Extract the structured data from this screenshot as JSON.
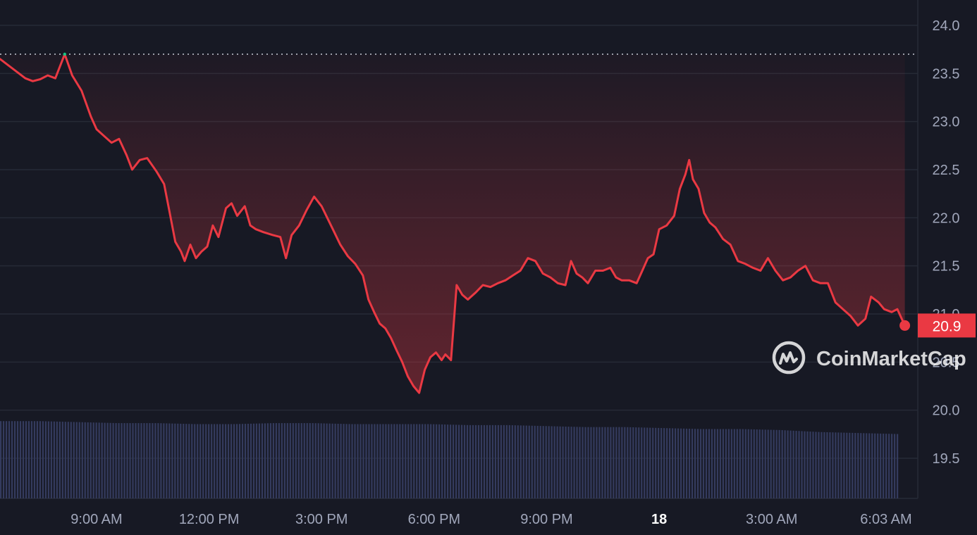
{
  "brand": {
    "watermark": "CoinMarketCap"
  },
  "colors": {
    "background": "#171924",
    "grid": "#262a36",
    "line": "#ea3943",
    "open_marker": "#16c784",
    "reference": "#c8ccd6",
    "volume": "#343b5e",
    "axis_text": "#a1a7bb"
  },
  "chart_data": {
    "type": "line",
    "ylim": [
      19.05,
      24.3
    ],
    "y_ticks": [
      "24.0",
      "23.5",
      "23.0",
      "22.5",
      "22.0",
      "21.5",
      "21.0",
      "20.5",
      "20.0",
      "19.5"
    ],
    "x_ticks": [
      {
        "label": "9:00 AM",
        "t": 2,
        "bold": false
      },
      {
        "label": "12:00 PM",
        "t": 5,
        "bold": false
      },
      {
        "label": "3:00 PM",
        "t": 8,
        "bold": false
      },
      {
        "label": "6:00 PM",
        "t": 11,
        "bold": false
      },
      {
        "label": "9:00 PM",
        "t": 14,
        "bold": false
      },
      {
        "label": "18",
        "t": 17,
        "bold": true
      },
      {
        "label": "3:00 AM",
        "t": 20,
        "bold": false
      },
      {
        "label": "6:03 AM",
        "t": 23.05,
        "bold": false
      }
    ],
    "reference_line": 23.7,
    "last_price": "20.9",
    "series": [
      {
        "points": [
          [
            0,
            23.65
          ],
          [
            0.1,
            23.45
          ],
          [
            0.3,
            23.42
          ],
          [
            0.5,
            23.44
          ],
          [
            0.7,
            23.48
          ],
          [
            0.9,
            23.45
          ],
          [
            1.15,
            23.7
          ],
          [
            1.35,
            23.48
          ],
          [
            1.6,
            23.32
          ],
          [
            1.85,
            23.05
          ],
          [
            2.0,
            22.92
          ],
          [
            2.2,
            22.85
          ],
          [
            2.4,
            22.78
          ],
          [
            2.6,
            22.82
          ],
          [
            2.8,
            22.65
          ],
          [
            2.95,
            22.5
          ],
          [
            3.15,
            22.6
          ],
          [
            3.35,
            22.62
          ],
          [
            3.6,
            22.48
          ],
          [
            3.8,
            22.35
          ],
          [
            3.95,
            22.05
          ],
          [
            4.1,
            21.75
          ],
          [
            4.25,
            21.65
          ],
          [
            4.35,
            21.55
          ],
          [
            4.5,
            21.72
          ],
          [
            4.65,
            21.58
          ],
          [
            4.8,
            21.65
          ],
          [
            4.95,
            21.7
          ],
          [
            5.1,
            21.92
          ],
          [
            5.25,
            21.8
          ],
          [
            5.45,
            22.1
          ],
          [
            5.6,
            22.15
          ],
          [
            5.75,
            22.02
          ],
          [
            5.95,
            22.12
          ],
          [
            6.1,
            21.92
          ],
          [
            6.25,
            21.88
          ],
          [
            6.45,
            21.85
          ],
          [
            6.7,
            21.82
          ],
          [
            6.9,
            21.8
          ],
          [
            7.05,
            21.58
          ],
          [
            7.2,
            21.82
          ],
          [
            7.4,
            21.92
          ],
          [
            7.6,
            22.08
          ],
          [
            7.8,
            22.22
          ],
          [
            8.0,
            22.12
          ],
          [
            8.15,
            22.0
          ],
          [
            8.3,
            21.88
          ],
          [
            8.5,
            21.72
          ],
          [
            8.7,
            21.6
          ],
          [
            8.9,
            21.52
          ],
          [
            9.1,
            21.4
          ],
          [
            9.25,
            21.15
          ],
          [
            9.4,
            21.02
          ],
          [
            9.55,
            20.9
          ],
          [
            9.7,
            20.85
          ],
          [
            9.85,
            20.75
          ],
          [
            10.0,
            20.62
          ],
          [
            10.15,
            20.5
          ],
          [
            10.3,
            20.35
          ],
          [
            10.45,
            20.25
          ],
          [
            10.6,
            20.18
          ],
          [
            10.75,
            20.42
          ],
          [
            10.9,
            20.55
          ],
          [
            11.05,
            20.6
          ],
          [
            11.2,
            20.52
          ],
          [
            11.3,
            20.58
          ],
          [
            11.45,
            20.52
          ],
          [
            11.6,
            21.3
          ],
          [
            11.75,
            21.2
          ],
          [
            11.9,
            21.15
          ],
          [
            12.1,
            21.22
          ],
          [
            12.3,
            21.3
          ],
          [
            12.5,
            21.28
          ],
          [
            12.7,
            21.32
          ],
          [
            12.9,
            21.35
          ],
          [
            13.1,
            21.4
          ],
          [
            13.3,
            21.45
          ],
          [
            13.5,
            21.58
          ],
          [
            13.7,
            21.55
          ],
          [
            13.9,
            21.42
          ],
          [
            14.1,
            21.38
          ],
          [
            14.3,
            21.32
          ],
          [
            14.5,
            21.3
          ],
          [
            14.65,
            21.55
          ],
          [
            14.8,
            21.42
          ],
          [
            14.95,
            21.38
          ],
          [
            15.1,
            21.32
          ],
          [
            15.3,
            21.45
          ],
          [
            15.5,
            21.45
          ],
          [
            15.7,
            21.48
          ],
          [
            15.85,
            21.38
          ],
          [
            16.0,
            21.35
          ],
          [
            16.2,
            21.35
          ],
          [
            16.4,
            21.32
          ],
          [
            16.55,
            21.45
          ],
          [
            16.7,
            21.58
          ],
          [
            16.85,
            21.62
          ],
          [
            17.0,
            21.88
          ],
          [
            17.2,
            21.92
          ],
          [
            17.4,
            22.02
          ],
          [
            17.55,
            22.3
          ],
          [
            17.7,
            22.45
          ],
          [
            17.8,
            22.6
          ],
          [
            17.9,
            22.4
          ],
          [
            18.05,
            22.3
          ],
          [
            18.2,
            22.05
          ],
          [
            18.35,
            21.95
          ],
          [
            18.5,
            21.9
          ],
          [
            18.7,
            21.78
          ],
          [
            18.9,
            21.72
          ],
          [
            19.1,
            21.55
          ],
          [
            19.3,
            21.52
          ],
          [
            19.5,
            21.48
          ],
          [
            19.7,
            21.45
          ],
          [
            19.9,
            21.58
          ],
          [
            20.1,
            21.45
          ],
          [
            20.3,
            21.35
          ],
          [
            20.5,
            21.38
          ],
          [
            20.7,
            21.45
          ],
          [
            20.9,
            21.5
          ],
          [
            21.1,
            21.35
          ],
          [
            21.3,
            21.32
          ],
          [
            21.5,
            21.32
          ],
          [
            21.7,
            21.12
          ],
          [
            21.9,
            21.05
          ],
          [
            22.1,
            20.98
          ],
          [
            22.3,
            20.88
          ],
          [
            22.5,
            20.95
          ],
          [
            22.65,
            21.18
          ],
          [
            22.85,
            21.12
          ],
          [
            23.0,
            21.05
          ],
          [
            23.2,
            21.02
          ],
          [
            23.35,
            21.05
          ],
          [
            23.55,
            20.88
          ]
        ]
      }
    ],
    "volume": [
      0.78,
      0.78,
      0.77,
      0.76,
      0.76,
      0.75,
      0.75,
      0.76,
      0.76,
      0.75,
      0.75,
      0.75,
      0.74,
      0.74,
      0.73,
      0.72,
      0.72,
      0.71,
      0.7,
      0.7,
      0.69,
      0.67,
      0.66,
      0.65
    ]
  }
}
